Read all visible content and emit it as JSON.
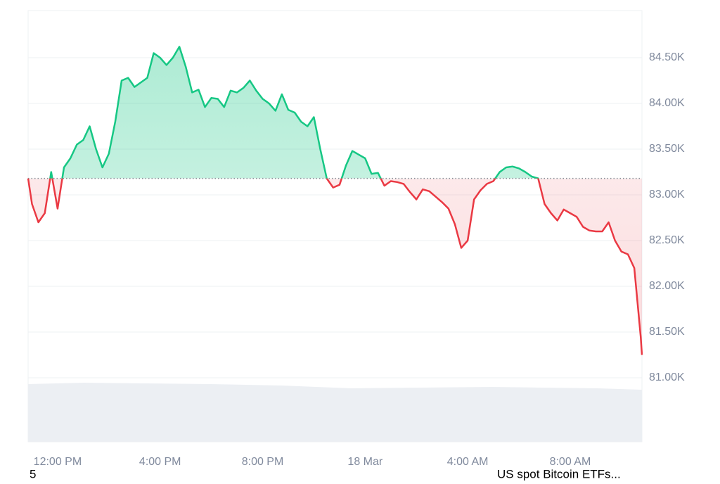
{
  "chart_data": {
    "type": "line",
    "x": [
      -1.15,
      -1.0,
      -0.75,
      -0.5,
      -0.25,
      0,
      0.25,
      0.5,
      0.75,
      1.0,
      1.25,
      1.5,
      1.75,
      2.0,
      2.25,
      2.5,
      2.75,
      3.0,
      3.25,
      3.5,
      3.75,
      4.0,
      4.25,
      4.5,
      4.75,
      5.0,
      5.25,
      5.5,
      5.75,
      6.0,
      6.25,
      6.5,
      6.75,
      7.0,
      7.25,
      7.5,
      7.75,
      8.0,
      8.25,
      8.5,
      8.75,
      9.0,
      9.25,
      9.5,
      9.75,
      10.0,
      10.25,
      10.5,
      10.75,
      11.0,
      11.25,
      11.5,
      11.75,
      12.0,
      12.25,
      12.5,
      12.75,
      13.0,
      13.25,
      13.5,
      13.75,
      14.0,
      14.25,
      14.5,
      14.75,
      15.0,
      15.25,
      15.5,
      15.75,
      16.0,
      16.25,
      16.5,
      16.75,
      17.0,
      17.25,
      17.5,
      17.75,
      18.0,
      18.25,
      18.5,
      18.75,
      19.0,
      19.25,
      19.5,
      19.75,
      20.0,
      20.25,
      20.5,
      20.75,
      21.0,
      21.25,
      21.5,
      21.75,
      22.0,
      22.25,
      22.5,
      22.75,
      22.8
    ],
    "series": [
      {
        "up_color": "#16c784",
        "down_color": "#ea3943",
        "values": [
          83180,
          82900,
          82700,
          82800,
          83250,
          82850,
          83300,
          83400,
          83550,
          83600,
          83750,
          83500,
          83300,
          83450,
          83800,
          84250,
          84280,
          84180,
          84230,
          84280,
          84550,
          84500,
          84420,
          84500,
          84620,
          84400,
          84120,
          84150,
          83960,
          84060,
          84050,
          83960,
          84140,
          84120,
          84170,
          84250,
          84140,
          84050,
          84000,
          83920,
          84100,
          83930,
          83900,
          83800,
          83750,
          83850,
          83500,
          83180,
          83080,
          83110,
          83320,
          83480,
          83440,
          83400,
          83230,
          83240,
          83100,
          83150,
          83140,
          83120,
          83030,
          82950,
          83060,
          83040,
          82980,
          82920,
          82850,
          82680,
          82420,
          82500,
          82950,
          83050,
          83120,
          83150,
          83250,
          83300,
          83310,
          83290,
          83250,
          83200,
          83180,
          82900,
          82800,
          82720,
          82840,
          82800,
          82760,
          82650,
          82610,
          82600,
          82600,
          82700,
          82500,
          82380,
          82350,
          82200,
          81450,
          81250
        ]
      }
    ],
    "baseline": 83180,
    "xlim": [
      -1.15,
      22.8
    ],
    "xticks": [
      {
        "value": 0,
        "label": "12:00 PM"
      },
      {
        "value": 4,
        "label": "4:00 PM"
      },
      {
        "value": 8,
        "label": "8:00 PM"
      },
      {
        "value": 12,
        "label": "18 Mar"
      },
      {
        "value": 16,
        "label": "4:00 AM"
      },
      {
        "value": 20,
        "label": "8:00 AM"
      }
    ],
    "ylim": [
      81000,
      85015
    ],
    "yticks": [
      {
        "value": 81000,
        "label": "81.00K"
      },
      {
        "value": 81500,
        "label": "81.50K"
      },
      {
        "value": 82000,
        "label": "82.00K"
      },
      {
        "value": 82500,
        "label": "82.50K"
      },
      {
        "value": 83000,
        "label": "83.00K"
      },
      {
        "value": 83500,
        "label": "83.50K"
      },
      {
        "value": 84000,
        "label": "84.00K"
      },
      {
        "value": 84500,
        "label": "84.50K"
      }
    ],
    "grid": true
  },
  "footer": [
    "5",
    "US spot Bitcoin ETFs..."
  ]
}
